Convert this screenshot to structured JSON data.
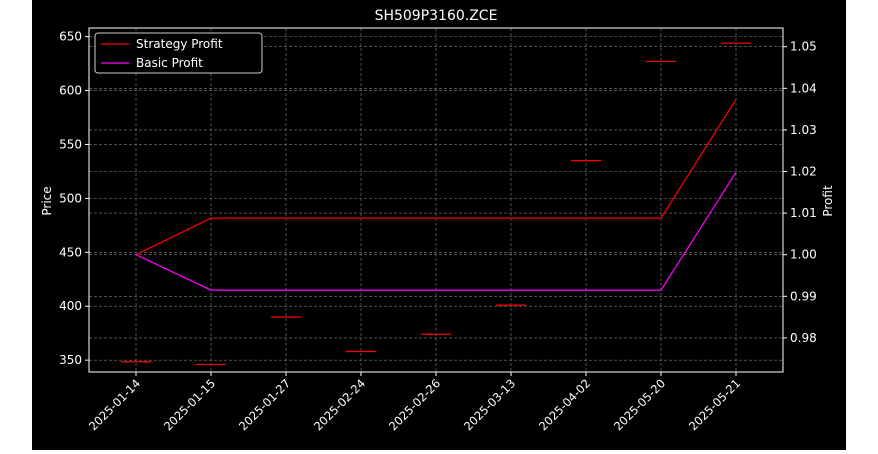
{
  "chart_data": {
    "type": "line",
    "title": "SH509P3160.ZCE",
    "xlabel": "",
    "ylabel_left": "Price",
    "ylabel_right": "Profit",
    "categories": [
      "2025-01-14",
      "2025-01-15",
      "2025-01-27",
      "2025-02-24",
      "2025-02-26",
      "2025-03-13",
      "2025-04-02",
      "2025-05-20",
      "2025-05-21"
    ],
    "left_axis": {
      "ylim": [
        339,
        658
      ],
      "ticks": [
        350,
        400,
        450,
        500,
        550,
        600,
        650
      ]
    },
    "right_axis": {
      "ylim": [
        0.9718,
        1.0545
      ],
      "ticks": [
        0.98,
        0.99,
        1.0,
        1.01,
        1.02,
        1.03,
        1.04,
        1.05
      ],
      "tick_labels": [
        "0.98",
        "0.99",
        "1.00",
        "1.01",
        "1.02",
        "1.03",
        "1.04",
        "1.05"
      ]
    },
    "price_markers": {
      "axis": "left",
      "color": "#ff0000",
      "values": [
        348.5,
        346,
        390,
        358,
        374,
        401,
        535,
        627,
        644
      ]
    },
    "series": [
      {
        "name": "Strategy Profit",
        "axis": "right",
        "color": "#ff0000",
        "values": [
          1.0,
          1.0088,
          1.0088,
          1.0088,
          1.0088,
          1.0088,
          1.0088,
          1.0088,
          1.0373
        ]
      },
      {
        "name": "Basic Profit",
        "axis": "right",
        "color": "#ff00ff",
        "values": [
          1.0,
          0.9915,
          0.9915,
          0.9915,
          0.9915,
          0.9915,
          0.9915,
          0.9915,
          1.0198
        ]
      }
    ],
    "grid": true,
    "legend_position": "top-left"
  }
}
